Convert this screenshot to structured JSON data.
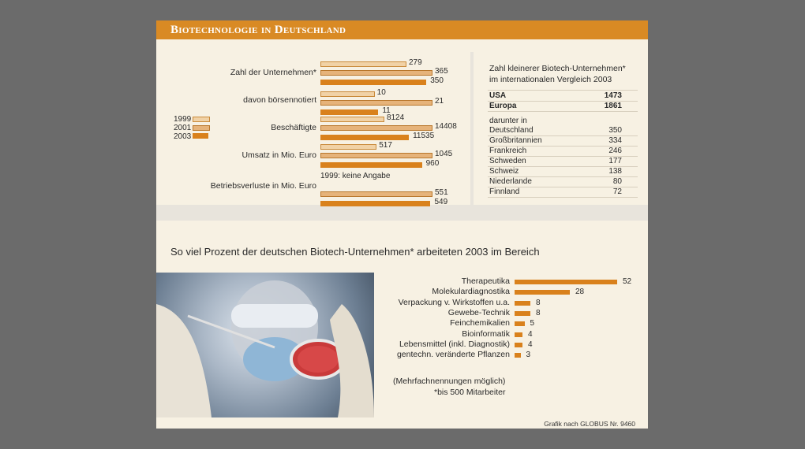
{
  "header": {
    "title": "Biotechnologie in Deutschland"
  },
  "legend": {
    "years": [
      "1999",
      "2001",
      "2003"
    ]
  },
  "chart_data": [
    {
      "type": "bar",
      "categories": [
        "Zahl der Unternehmen*",
        "davon börsennotiert",
        "Beschäftigte",
        "Umsatz in Mio. Euro",
        "Betriebsverluste in Mio. Euro"
      ],
      "value_labels": [
        [
          "279",
          "365",
          "350"
        ],
        [
          "10",
          "21",
          "11"
        ],
        [
          "8124",
          "14408",
          "11535"
        ],
        [
          "517",
          "1045",
          "960"
        ],
        [
          null,
          "551",
          "549"
        ]
      ],
      "series": [
        {
          "name": "1999",
          "values": [
            279,
            10,
            8124,
            517,
            null
          ]
        },
        {
          "name": "2001",
          "values": [
            365,
            21,
            14408,
            1045,
            551
          ]
        },
        {
          "name": "2003",
          "values": [
            350,
            11,
            11535,
            960,
            549
          ]
        }
      ],
      "annotation": "1999: keine Angabe"
    },
    {
      "type": "table",
      "title": "Zahl kleinerer Biotech-Unternehmen* im internationalen Vergleich 2003",
      "rows_bold": [
        {
          "label": "USA",
          "value": "1473"
        },
        {
          "label": "Europa",
          "value": "1861"
        }
      ],
      "group_label": "darunter in",
      "rows": [
        {
          "label": "Deutschland",
          "value": "350"
        },
        {
          "label": "Großbritannien",
          "value": "334"
        },
        {
          "label": "Frankreich",
          "value": "246"
        },
        {
          "label": "Schweden",
          "value": "177"
        },
        {
          "label": "Schweiz",
          "value": "138"
        },
        {
          "label": "Niederlande",
          "value": "80"
        },
        {
          "label": "Finnland",
          "value": "72"
        }
      ]
    },
    {
      "type": "bar",
      "title": "So viel Prozent der deutschen Biotech-Unternehmen* arbeiteten 2003 im Bereich",
      "categories": [
        "Therapeutika",
        "Molekulardiagnostika",
        "Verpackung v. Wirkstoffen u.a.",
        "Gewebe-Technik",
        "Feinchemikalien",
        "Bioinformatik",
        "Lebensmittel (inkl. Diagnostik)",
        "gentechn. veränderte Pflanzen"
      ],
      "values": [
        52,
        28,
        8,
        8,
        5,
        4,
        4,
        3
      ],
      "notes": [
        "(Mehrfachnennungen möglich)",
        "*bis 500 Mitarbeiter"
      ]
    }
  ],
  "footer": {
    "source": "Grafik nach GLOBUS Nr. 9460"
  },
  "colors": {
    "header": "#d98a24",
    "bar_2003": "#d9811c",
    "bar_2001": "#e6b37a",
    "bar_1999": "#f1d2a6",
    "background": "#f7f1e3"
  }
}
